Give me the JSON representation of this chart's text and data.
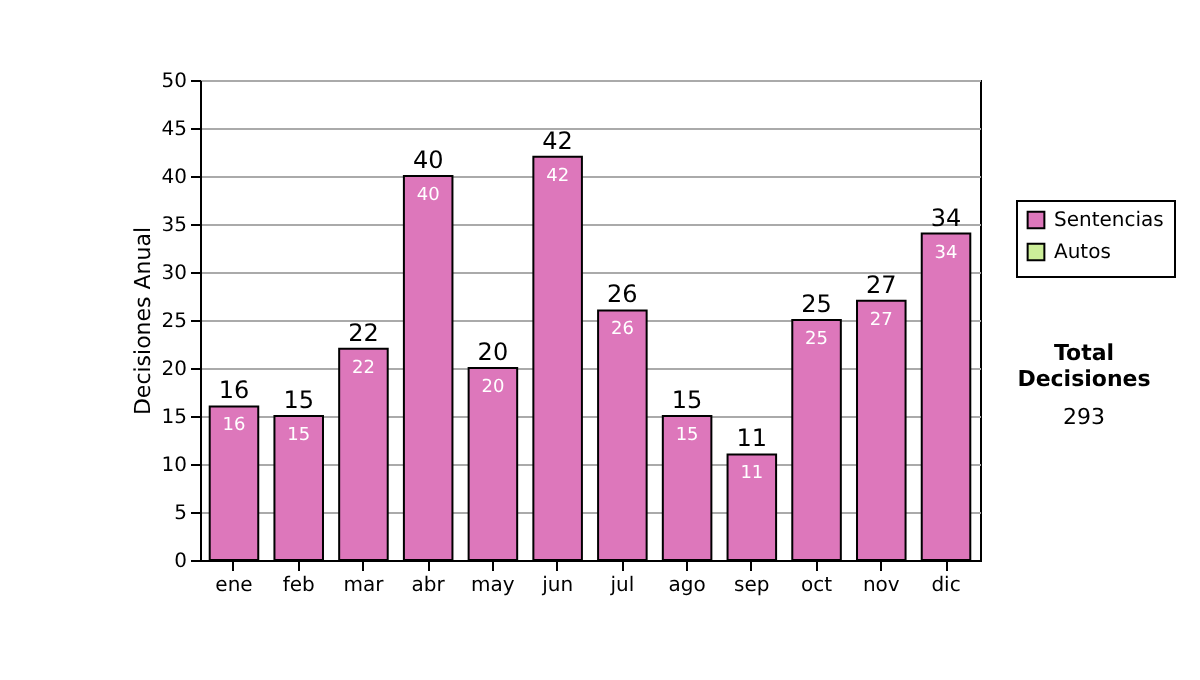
{
  "chart_data": {
    "type": "bar",
    "stacked": true,
    "ylabel": "Decisiones Anual",
    "categories": [
      "ene",
      "feb",
      "mar",
      "abr",
      "may",
      "jun",
      "jul",
      "ago",
      "sep",
      "oct",
      "nov",
      "dic"
    ],
    "series": [
      {
        "name": "Sentencias",
        "color": "#dd77bb",
        "values": [
          16,
          15,
          22,
          40,
          20,
          42,
          26,
          15,
          11,
          25,
          27,
          34
        ],
        "value_labels": [
          "16",
          "15",
          "22",
          "40",
          "20",
          "42",
          "26",
          "15",
          "11",
          "25",
          "27",
          "34"
        ]
      },
      {
        "name": "Autos",
        "color": "#ccee99",
        "values": [
          0,
          0,
          0,
          0,
          0,
          0,
          0,
          0,
          0,
          0,
          0,
          0
        ]
      }
    ],
    "totals": [
      "16",
      "15",
      "22",
      "40",
      "20",
      "42",
      "26",
      "15",
      "11",
      "25",
      "27",
      "34"
    ],
    "ylim": [
      0,
      50
    ],
    "yticks": [
      0,
      5,
      10,
      15,
      20,
      25,
      30,
      35,
      40,
      45,
      50
    ],
    "grid": "y",
    "legend": "right",
    "annotations": [
      "Total Decisiones",
      "293"
    ]
  }
}
